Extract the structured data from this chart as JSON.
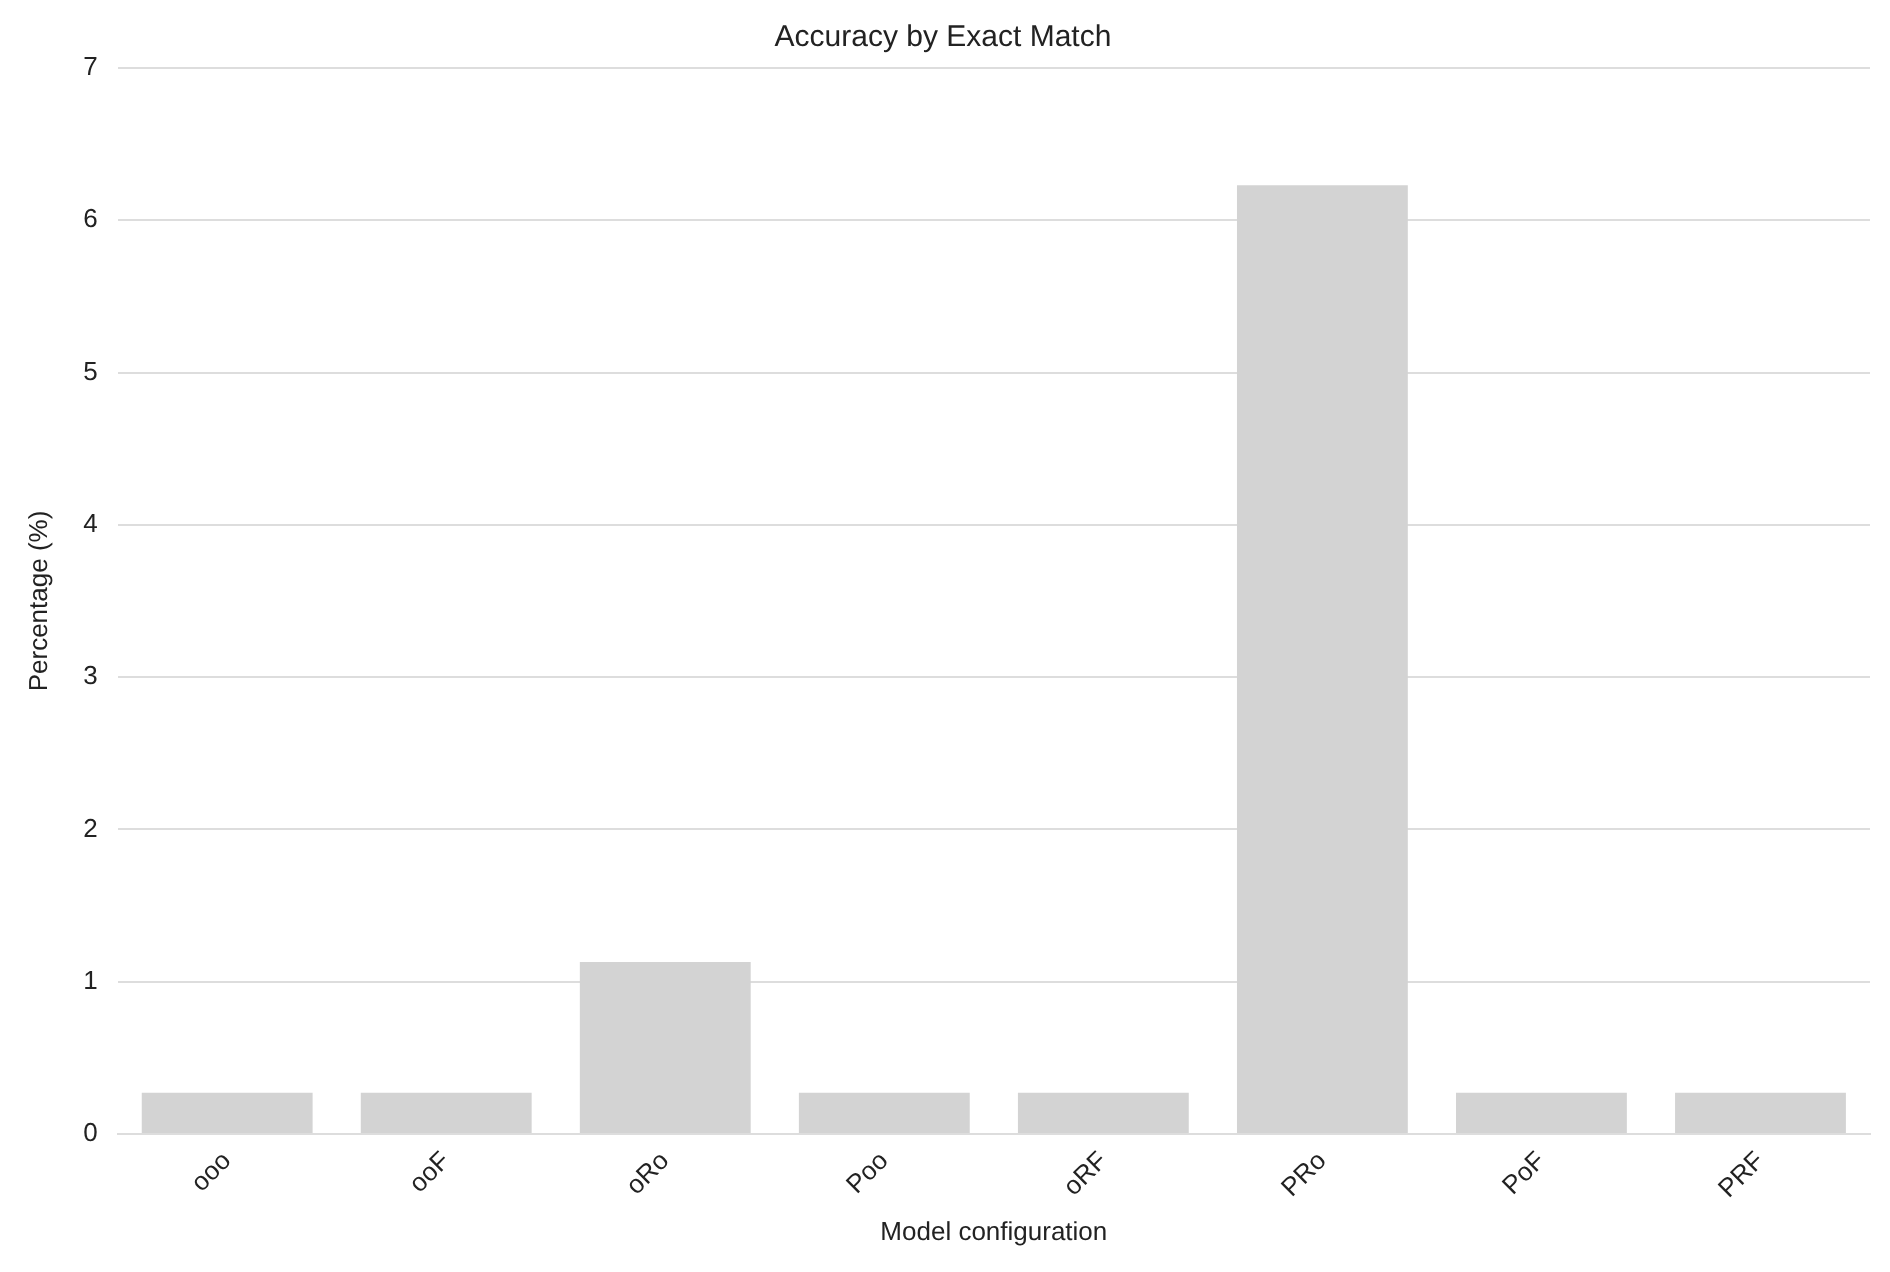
{
  "chart_data": {
    "type": "bar",
    "title": "Accuracy by Exact Match",
    "xlabel": "Model configuration",
    "ylabel": "Percentage (%)",
    "categories": [
      "ooo",
      "ooF",
      "oRo",
      "Poo",
      "oRF",
      "PRo",
      "PoF",
      "PRF"
    ],
    "values": [
      0.27,
      0.27,
      1.13,
      0.27,
      0.27,
      6.23,
      0.27,
      0.27
    ],
    "color": "#d3d3d3",
    "ylim": [
      0,
      7
    ],
    "yticks": [
      0,
      1,
      2,
      3,
      4,
      5,
      6,
      7
    ],
    "grid": "y",
    "legend": false
  }
}
